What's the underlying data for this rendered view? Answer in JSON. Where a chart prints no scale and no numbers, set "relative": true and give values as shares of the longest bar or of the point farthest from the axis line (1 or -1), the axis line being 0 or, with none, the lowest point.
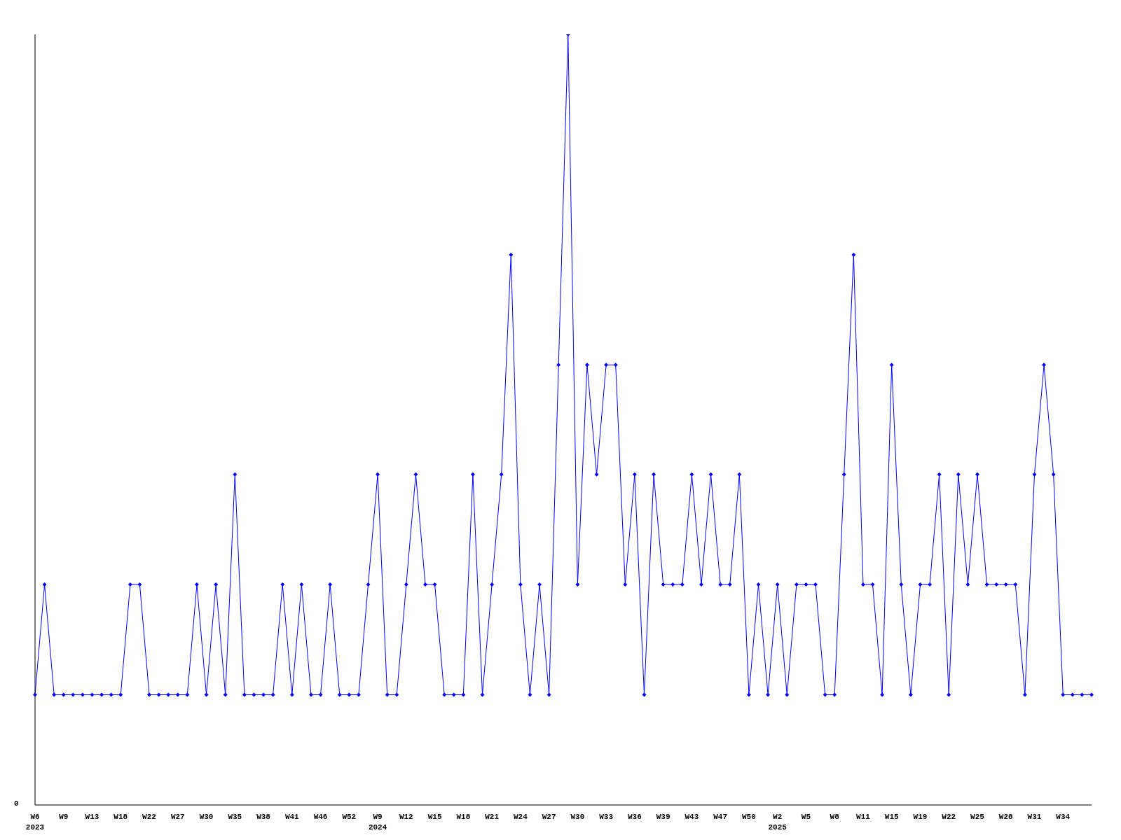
{
  "chart_data": {
    "type": "line",
    "relative": true,
    "annotations": [
      "0"
    ],
    "categories": [
      "W6\n2023",
      null,
      null,
      "W9",
      null,
      null,
      "W13",
      null,
      null,
      "W18",
      null,
      null,
      "W22",
      null,
      null,
      "W27",
      null,
      null,
      "W30",
      null,
      null,
      "W35",
      null,
      null,
      "W38",
      null,
      null,
      "W41",
      null,
      null,
      "W46",
      null,
      null,
      "W52",
      null,
      null,
      "W9\n2024",
      null,
      null,
      "W12",
      null,
      null,
      "W15",
      null,
      null,
      "W18",
      null,
      null,
      "W21",
      null,
      null,
      "W24",
      null,
      null,
      "W27",
      null,
      null,
      "W30",
      null,
      null,
      "W33",
      null,
      null,
      "W36",
      null,
      null,
      "W39",
      null,
      null,
      "W43",
      null,
      null,
      "W47",
      null,
      null,
      "W50",
      null,
      null,
      "W2\n2025",
      null,
      null,
      "W5",
      null,
      null,
      "W8",
      null,
      null,
      "W11",
      null,
      null,
      "W15",
      null,
      null,
      "W19",
      null,
      null,
      "W22",
      null,
      null,
      "W25",
      null,
      null,
      "W28",
      null,
      null,
      "W31",
      null,
      null,
      "W34",
      null,
      null,
      null
    ],
    "series": [
      {
        "color": "#0000ff",
        "values": [
          0.143,
          0.286,
          0.143,
          0.143,
          0.143,
          0.143,
          0.143,
          0.143,
          0.143,
          0.143,
          0.286,
          0.286,
          0.143,
          0.143,
          0.143,
          0.143,
          0.143,
          0.286,
          0.143,
          0.286,
          0.143,
          0.429,
          0.143,
          0.143,
          0.143,
          0.143,
          0.286,
          0.143,
          0.286,
          0.143,
          0.143,
          0.286,
          0.143,
          0.143,
          0.143,
          0.286,
          0.429,
          0.143,
          0.143,
          0.286,
          0.429,
          0.286,
          0.286,
          0.143,
          0.143,
          0.143,
          0.429,
          0.143,
          0.286,
          0.429,
          0.714,
          0.286,
          0.143,
          0.286,
          0.143,
          0.571,
          1,
          0.286,
          0.571,
          0.429,
          0.571,
          0.571,
          0.286,
          0.429,
          0.143,
          0.429,
          0.286,
          0.286,
          0.286,
          0.429,
          0.286,
          0.429,
          0.286,
          0.286,
          0.429,
          0.143,
          0.286,
          0.143,
          0.286,
          0.143,
          0.286,
          0.286,
          0.286,
          0.143,
          0.143,
          0.429,
          0.714,
          0.286,
          0.286,
          0.143,
          0.571,
          0.286,
          0.143,
          0.286,
          0.286,
          0.429,
          0.143,
          0.429,
          0.286,
          0.429,
          0.286,
          0.286,
          0.286,
          0.286,
          0.143,
          0.429,
          0.571,
          0.429,
          0.143,
          0.143,
          0.143,
          0.143
        ]
      }
    ],
    "marker": "diamond",
    "line_style": "solid",
    "grid": false,
    "legend": false
  }
}
